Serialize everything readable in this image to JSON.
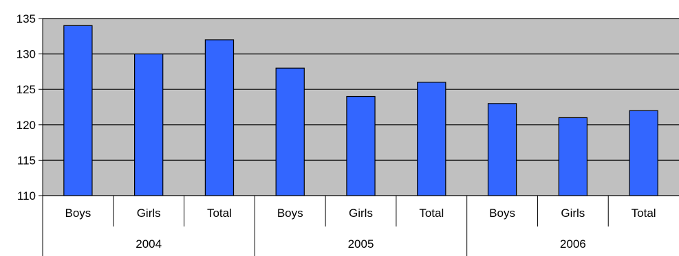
{
  "chart_data": {
    "type": "bar",
    "groups": [
      {
        "label": "2004",
        "categories": [
          "Boys",
          "Girls",
          "Total"
        ],
        "values": [
          134,
          130,
          132
        ]
      },
      {
        "label": "2005",
        "categories": [
          "Boys",
          "Girls",
          "Total"
        ],
        "values": [
          128,
          124,
          126
        ]
      },
      {
        "label": "2006",
        "categories": [
          "Boys",
          "Girls",
          "Total"
        ],
        "values": [
          123,
          121,
          122
        ]
      }
    ],
    "ylim": [
      110,
      135
    ],
    "yticks": [
      110,
      115,
      120,
      125,
      130,
      135
    ],
    "grid": true,
    "legend": "none",
    "colors": {
      "bar": "#3366ff",
      "bar_stroke": "#000000",
      "plot_background": "#c0c0c0",
      "gridline": "#000000"
    }
  }
}
